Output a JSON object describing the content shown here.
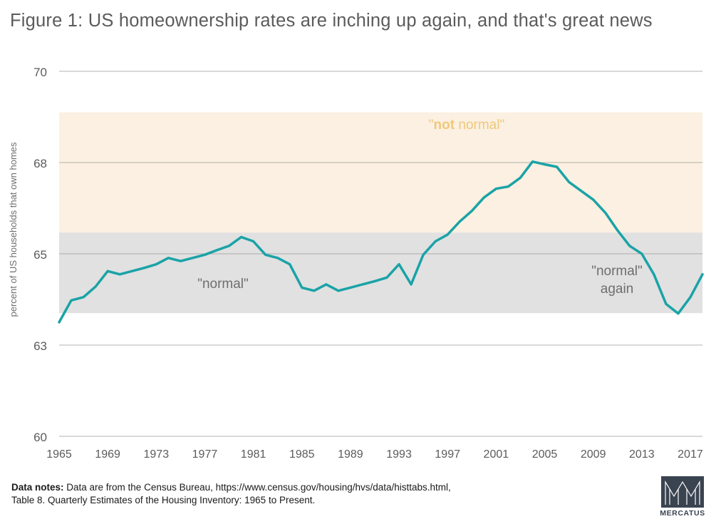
{
  "title": "Figure 1: US homeownership rates are inching up again, and that's great news",
  "notes": {
    "label": "Data notes:",
    "line1": " Data are from the Census Bureau, https://www.census.gov/housing/hvs/data/histtabs.html,",
    "line2": "Table 8. Quarterly Estimates of the Housing Inventory: 1965 to Present."
  },
  "logo_text": "MERCATUS",
  "colors": {
    "line": "#1aa3a7",
    "band_normal": "#e1e1e1",
    "band_not_normal": "#fbf0e1",
    "not_normal_text": "#f0c87a",
    "normal_text": "#6e6e6e",
    "grid": "#9a9a9a",
    "logo": "#3a4350"
  },
  "chart_data": {
    "type": "line",
    "ylabel": "percent of US households that own homes",
    "ylim": [
      60,
      70
    ],
    "xlim": [
      1965,
      2018
    ],
    "yticks": [
      {
        "value": 60,
        "label": "60"
      },
      {
        "value": 63,
        "label": "63"
      },
      {
        "value": 65,
        "label": "65"
      },
      {
        "value": 68,
        "label": "68"
      },
      {
        "value": 70,
        "label": "70"
      }
    ],
    "xticks": [
      1965,
      1969,
      1973,
      1977,
      1981,
      1985,
      1989,
      1993,
      1997,
      2001,
      2005,
      2009,
      2013,
      2017
    ],
    "grid": true,
    "bands": [
      {
        "name": "normal",
        "from": 63.7,
        "to": 65.7
      },
      {
        "name": "not normal",
        "from": 65.7,
        "to": 69.1
      }
    ],
    "annotations": {
      "not_normal_q1": "\"",
      "not_normal_bold": "not",
      "not_normal_rest": " normal\"",
      "normal": "\"normal\"",
      "normal_again_1": "\"normal\"",
      "normal_again_2": "again"
    },
    "series": [
      {
        "x": [
          1965,
          1966,
          1967,
          1968,
          1969,
          1970,
          1971,
          1972,
          1973,
          1974,
          1975,
          1976,
          1977,
          1978,
          1979,
          1980,
          1981,
          1982,
          1983,
          1984,
          1985,
          1986,
          1987,
          1988,
          1989,
          1990,
          1991,
          1992,
          1993,
          1994,
          1995,
          1996,
          1997,
          1998,
          1999,
          2000,
          2001,
          2002,
          2003,
          2004,
          2005,
          2006,
          2007,
          2008,
          2009,
          2010,
          2011,
          2012,
          2013,
          2014,
          2015,
          2016,
          2017,
          2018
        ],
        "values": [
          63.5,
          63.98,
          64.05,
          64.28,
          64.62,
          64.55,
          64.62,
          64.69,
          64.77,
          64.91,
          64.84,
          64.91,
          64.98,
          65.12,
          65.26,
          65.55,
          65.41,
          64.98,
          64.91,
          64.77,
          64.26,
          64.19,
          64.33,
          64.19,
          64.26,
          64.33,
          64.4,
          64.48,
          64.77,
          64.33,
          64.98,
          65.41,
          65.63,
          66.06,
          66.41,
          66.85,
          67.14,
          67.21,
          67.5,
          68.02,
          67.94,
          67.86,
          67.36,
          67.07,
          66.78,
          66.35,
          65.77,
          65.26,
          65.0,
          64.55,
          63.9,
          63.69,
          64.05,
          64.55
        ]
      }
    ]
  }
}
